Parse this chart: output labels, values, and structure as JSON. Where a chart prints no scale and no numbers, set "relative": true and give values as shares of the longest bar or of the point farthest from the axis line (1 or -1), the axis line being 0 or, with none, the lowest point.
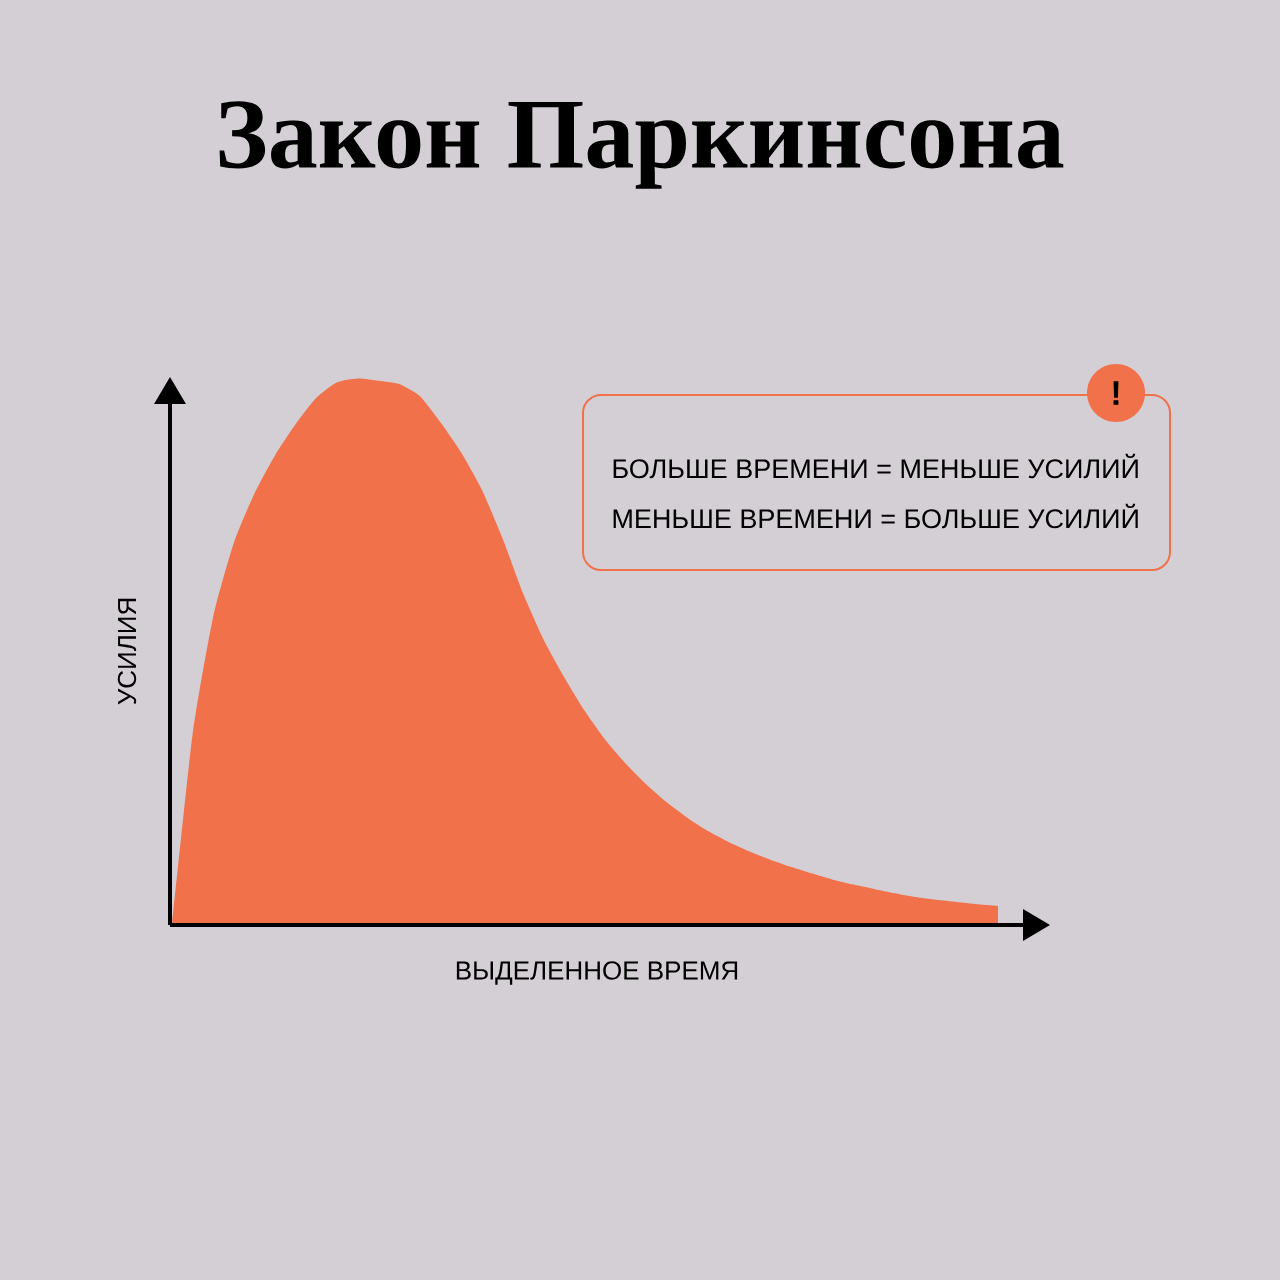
{
  "chart_data": {
    "type": "area",
    "title": "Закон Паркинсона",
    "xlabel": "ВЫДЕЛЕННОЕ ВРЕМЯ",
    "ylabel": "УСИЛИЯ",
    "annotations": [
      "!",
      "БОЛЬШЕ ВРЕМЕНИ = МЕНЬШЕ УСИЛИЙ",
      "МЕНЬШЕ ВРЕМЕНИ = БОЛЬШЕ УСИЛИЙ"
    ],
    "relative": true,
    "categories": [
      null,
      null,
      null,
      null,
      null,
      null,
      null,
      null,
      null,
      null,
      null,
      null,
      null,
      null,
      null,
      null,
      null,
      null,
      null,
      null,
      null,
      null,
      null,
      null,
      null,
      null,
      null,
      null,
      null,
      null,
      null,
      null,
      null,
      null,
      null,
      null,
      null,
      null,
      null,
      null,
      null
    ],
    "series": [
      {
        "color": "#f1714a",
        "values": [
          0,
          0.35,
          0.565,
          0.7,
          0.79,
          0.86,
          0.917,
          0.965,
          0.993,
          1.0,
          0.996,
          0.99,
          0.968,
          0.92,
          0.865,
          0.797,
          0.708,
          0.607,
          0.522,
          0.453,
          0.391,
          0.338,
          0.294,
          0.256,
          0.223,
          0.195,
          0.171,
          0.151,
          0.134,
          0.119,
          0.106,
          0.094,
          0.083,
          0.074,
          0.066,
          0.058,
          0.051,
          0.046,
          0.042,
          0.038,
          0.035
        ]
      }
    ]
  }
}
